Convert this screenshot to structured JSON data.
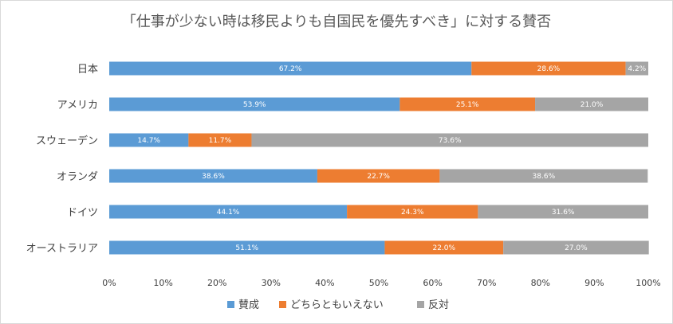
{
  "chart_data": {
    "type": "bar",
    "orientation": "horizontal",
    "stacked": true,
    "title": "「仕事が少ない時は移民よりも自国民を優先すべき」に対する賛否",
    "categories": [
      "日本",
      "アメリカ",
      "スウェーデン",
      "オランダ",
      "ドイツ",
      "オーストラリア"
    ],
    "series": [
      {
        "name": "賛成",
        "color": "#5b9bd5",
        "values": [
          67.2,
          53.9,
          14.7,
          38.6,
          44.1,
          51.1
        ]
      },
      {
        "name": "どちらともいえない",
        "color": "#ed7d31",
        "values": [
          28.6,
          25.1,
          11.7,
          22.7,
          24.3,
          22.0
        ]
      },
      {
        "name": "反対",
        "color": "#a5a5a5",
        "values": [
          4.2,
          21.0,
          73.6,
          38.6,
          31.6,
          27.0
        ]
      }
    ],
    "data_labels": [
      [
        "67.2%",
        "53.9%",
        "14.7%",
        "38.6%",
        "44.1%",
        "51.1%"
      ],
      [
        "28.6%",
        "25.1%",
        "11.7%",
        "22.7%",
        "24.3%",
        "22.0%"
      ],
      [
        "4.2%",
        "21.0%",
        "73.6%",
        "38.6%",
        "31.6%",
        "27.0%"
      ]
    ],
    "xlim": [
      0,
      100
    ],
    "xticks": [
      0,
      10,
      20,
      30,
      40,
      50,
      60,
      70,
      80,
      90,
      100
    ],
    "xtick_labels": [
      "0%",
      "10%",
      "20%",
      "30%",
      "40%",
      "50%",
      "60%",
      "70%",
      "80%",
      "90%",
      "100%"
    ],
    "grid": false,
    "legend_position": "bottom"
  }
}
